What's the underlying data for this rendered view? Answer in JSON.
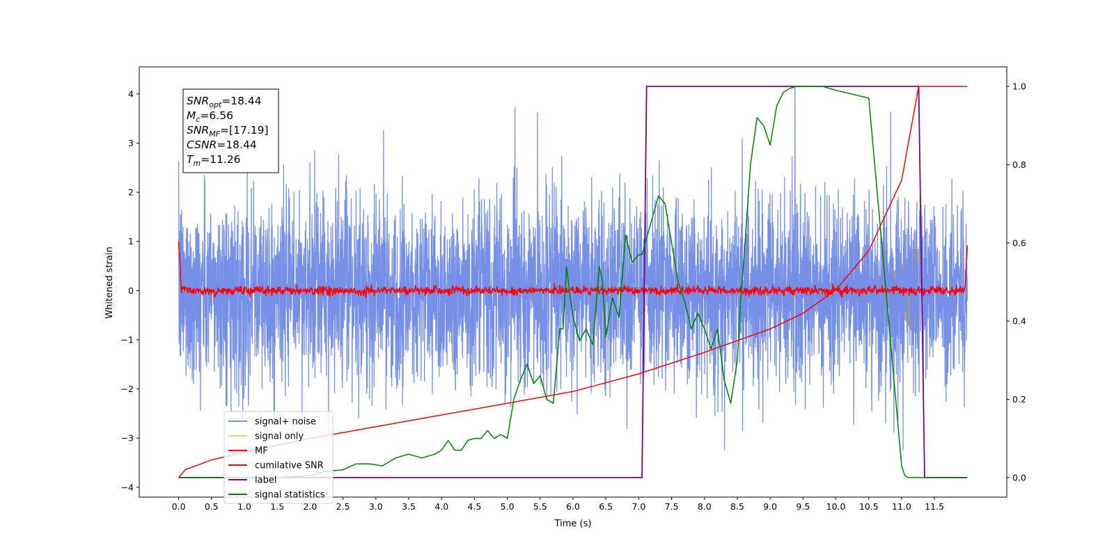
{
  "chart_data": {
    "type": "line",
    "xlabel": "Time (s)",
    "ylabel": "Whitened strain",
    "xlim": [
      -0.6,
      12.6
    ],
    "ylim": [
      -4.2,
      4.55
    ],
    "y2lim": [
      -0.05,
      1.05
    ],
    "grid": false,
    "legend_position": "lower-left",
    "x_ticks": [
      "0.0",
      "0.5",
      "1.0",
      "1.5",
      "2.0",
      "2.5",
      "3.0",
      "3.5",
      "4.0",
      "4.5",
      "5.0",
      "5.5",
      "6.0",
      "6.5",
      "7.0",
      "7.5",
      "8.0",
      "8.5",
      "9.0",
      "9.5",
      "10.0",
      "10.5",
      "11.0",
      "11.5"
    ],
    "y_ticks": [
      "−4",
      "−3",
      "−2",
      "−1",
      "0",
      "1",
      "2",
      "3",
      "4"
    ],
    "y2_ticks": [
      "0.0",
      "0.2",
      "0.4",
      "0.6",
      "0.8",
      "1.0"
    ],
    "info_box": [
      {
        "base": "SNR",
        "sub": "opt",
        "value": "=18.44"
      },
      {
        "base": "M",
        "sub": "c",
        "value": "=6.56"
      },
      {
        "base": "SNR",
        "sub": "MF",
        "value": "=[17.19]"
      },
      {
        "base": "CSNR",
        "sub": "",
        "value": "=18.44"
      },
      {
        "base": "T",
        "sub": "m",
        "value": "=11.26"
      }
    ],
    "series": [
      {
        "name": "signal+ noise",
        "color": "#7590e6",
        "axis": "left",
        "noise_sigma": 1.0,
        "duration": 12.0
      },
      {
        "name": "signal only",
        "color": "#f6d080",
        "fill_color": "#bf9d73",
        "axis": "left",
        "chirp_end_amplitude": 0.85,
        "merger_time": 11.26
      },
      {
        "name": "MF",
        "color": "#ff0000",
        "axis": "left",
        "noise_sigma": 0.045,
        "edge_value": 1.0
      },
      {
        "name": "cumilative SNR",
        "color": "#ff0000",
        "axis": "right",
        "x": [
          0.0,
          0.1,
          0.5,
          1.0,
          2.0,
          3.0,
          4.0,
          5.0,
          6.0,
          7.0,
          8.0,
          9.0,
          9.5,
          10.0,
          10.5,
          11.0,
          11.26,
          12.0
        ],
        "y": [
          0.0,
          0.02,
          0.045,
          0.065,
          0.1,
          0.13,
          0.16,
          0.19,
          0.22,
          0.265,
          0.32,
          0.38,
          0.42,
          0.48,
          0.58,
          0.76,
          1.0,
          1.0
        ]
      },
      {
        "name": "label",
        "color": "#800080",
        "axis": "right",
        "x": [
          0.0,
          7.05,
          7.12,
          11.26,
          11.35,
          12.0
        ],
        "y": [
          0.0,
          0.0,
          1.0,
          1.0,
          0.0,
          0.0
        ]
      },
      {
        "name": "signal statistics",
        "color": "#008000",
        "axis": "right",
        "x": [
          0.0,
          0.5,
          1.0,
          1.5,
          2.0,
          2.2,
          2.5,
          2.7,
          2.9,
          3.1,
          3.3,
          3.5,
          3.7,
          3.9,
          4.0,
          4.1,
          4.2,
          4.3,
          4.4,
          4.5,
          4.6,
          4.7,
          4.8,
          4.9,
          5.0,
          5.1,
          5.2,
          5.3,
          5.4,
          5.5,
          5.6,
          5.7,
          5.8,
          5.85,
          5.9,
          5.95,
          6.0,
          6.1,
          6.2,
          6.3,
          6.4,
          6.45,
          6.5,
          6.6,
          6.7,
          6.8,
          6.9,
          7.0,
          7.05,
          7.1,
          7.2,
          7.3,
          7.4,
          7.5,
          7.6,
          7.7,
          7.8,
          7.9,
          8.0,
          8.1,
          8.2,
          8.3,
          8.4,
          8.5,
          8.55,
          8.6,
          8.7,
          8.8,
          8.9,
          9.0,
          9.1,
          9.2,
          9.3,
          9.4,
          9.5,
          9.6,
          9.8,
          10.0,
          10.5,
          11.0,
          11.05,
          11.1,
          11.15,
          11.3,
          12.0
        ],
        "y": [
          0.0,
          0.0,
          0.0,
          0.0,
          0.005,
          0.015,
          0.02,
          0.035,
          0.035,
          0.03,
          0.05,
          0.06,
          0.05,
          0.06,
          0.07,
          0.095,
          0.07,
          0.07,
          0.095,
          0.1,
          0.1,
          0.12,
          0.1,
          0.11,
          0.1,
          0.2,
          0.25,
          0.29,
          0.24,
          0.26,
          0.2,
          0.19,
          0.38,
          0.38,
          0.54,
          0.47,
          0.41,
          0.35,
          0.38,
          0.34,
          0.54,
          0.5,
          0.36,
          0.46,
          0.41,
          0.62,
          0.55,
          0.57,
          0.57,
          0.6,
          0.66,
          0.72,
          0.7,
          0.6,
          0.5,
          0.45,
          0.38,
          0.42,
          0.38,
          0.33,
          0.38,
          0.25,
          0.19,
          0.3,
          0.45,
          0.56,
          0.8,
          0.92,
          0.9,
          0.85,
          0.95,
          0.985,
          0.995,
          1.0,
          1.0,
          1.0,
          1.0,
          0.99,
          0.97,
          0.03,
          0.005,
          0.0,
          0.0,
          0.0,
          0.0
        ]
      }
    ]
  }
}
